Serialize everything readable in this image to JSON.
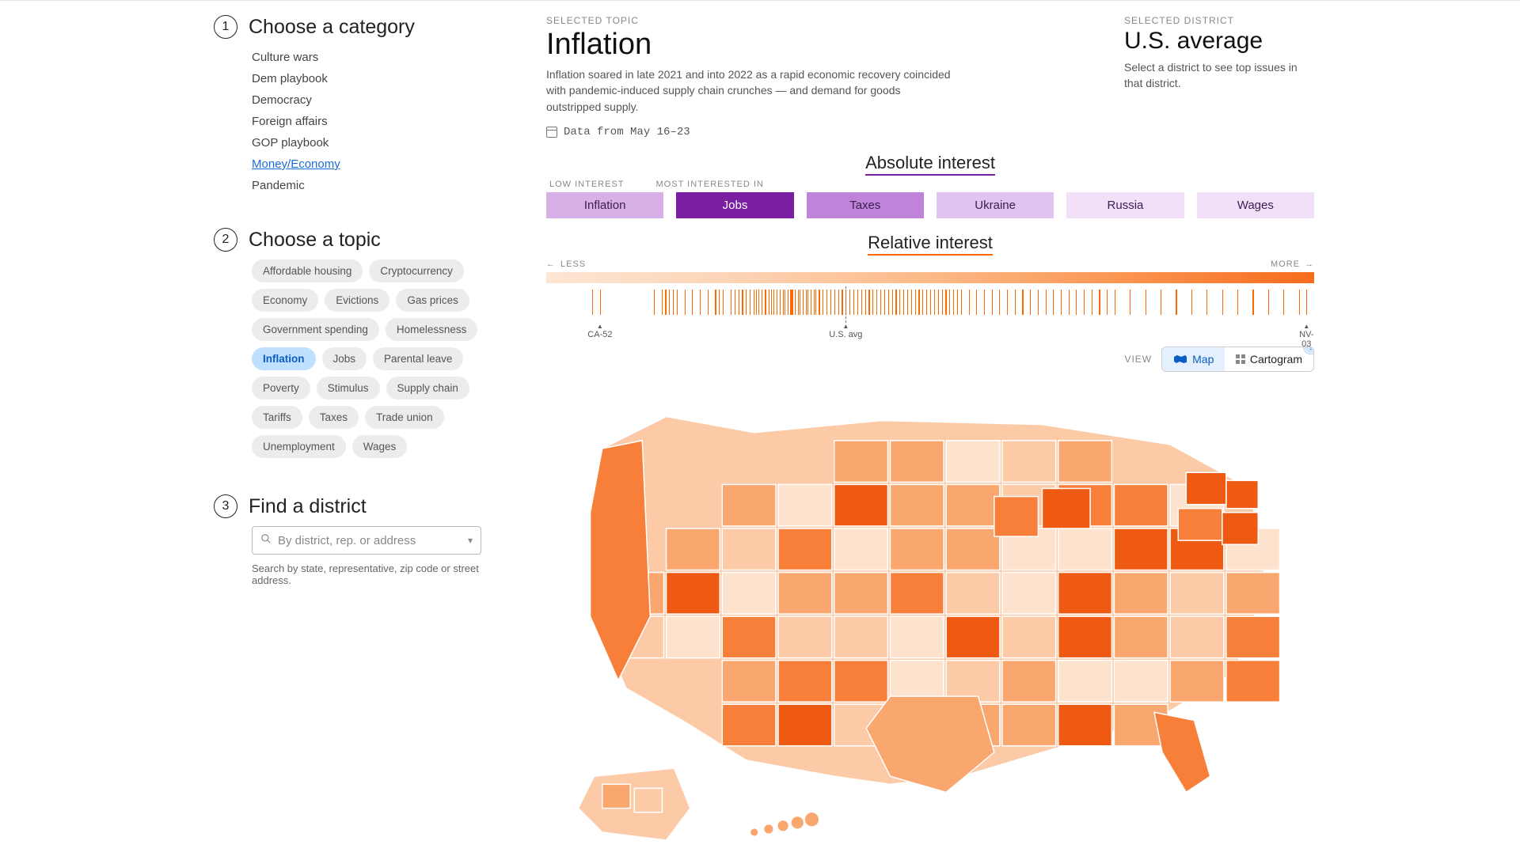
{
  "sidebar": {
    "step1": {
      "num": "1",
      "title": "Choose a category"
    },
    "categories": [
      {
        "label": "Culture wars",
        "selected": false
      },
      {
        "label": "Dem playbook",
        "selected": false
      },
      {
        "label": "Democracy",
        "selected": false
      },
      {
        "label": "Foreign affairs",
        "selected": false
      },
      {
        "label": "GOP playbook",
        "selected": false
      },
      {
        "label": "Money/Economy",
        "selected": true
      },
      {
        "label": "Pandemic",
        "selected": false
      }
    ],
    "step2": {
      "num": "2",
      "title": "Choose a topic"
    },
    "topics": [
      {
        "label": "Affordable housing"
      },
      {
        "label": "Cryptocurrency"
      },
      {
        "label": "Economy"
      },
      {
        "label": "Evictions"
      },
      {
        "label": "Gas prices"
      },
      {
        "label": "Government spending"
      },
      {
        "label": "Homelessness"
      },
      {
        "label": "Inflation",
        "selected": true
      },
      {
        "label": "Jobs"
      },
      {
        "label": "Parental leave"
      },
      {
        "label": "Poverty"
      },
      {
        "label": "Stimulus"
      },
      {
        "label": "Supply chain"
      },
      {
        "label": "Tariffs"
      },
      {
        "label": "Taxes"
      },
      {
        "label": "Trade union"
      },
      {
        "label": "Unemployment"
      },
      {
        "label": "Wages"
      }
    ],
    "step3": {
      "num": "3",
      "title": "Find a district"
    },
    "search": {
      "placeholder": "By district, rep. or address",
      "help": "Search by state, representative, zip code or street address."
    }
  },
  "main": {
    "topic": {
      "eyebrow": "SELECTED TOPIC",
      "title": "Inflation",
      "desc": "Inflation soared in late 2021 and into 2022 as a rapid economic recovery coincided with pandemic-induced supply chain crunches — and demand for goods outstripped supply.",
      "date": "Data from May 16–23"
    },
    "district": {
      "eyebrow": "SELECTED DISTRICT",
      "title": "U.S. average",
      "desc": "Select a district to see top issues in that district."
    },
    "absolute": {
      "title": "Absolute interest",
      "label_low": "LOW INTEREST",
      "label_high": "MOST INTERESTED IN",
      "bars": [
        {
          "label": "Inflation",
          "color": "#d7b0e8",
          "text": "#3a1e52"
        },
        {
          "label": "Jobs",
          "color": "#7b1fa2",
          "text": "#ffffff"
        },
        {
          "label": "Taxes",
          "color": "#c083da",
          "text": "#3a1e52"
        },
        {
          "label": "Ukraine",
          "color": "#e2c3ef",
          "text": "#3a1e52"
        },
        {
          "label": "Russia",
          "color": "#f2e0f9",
          "text": "#3a1e52"
        },
        {
          "label": "Wages",
          "color": "#f2e0f9",
          "text": "#3a1e52"
        }
      ]
    },
    "relative": {
      "title": "Relative interest",
      "less": "LESS",
      "more": "MORE",
      "gradient_colors": [
        "#fde6d4",
        "#fcd3b4",
        "#fbb987",
        "#fa9551",
        "#f76b1c"
      ],
      "avg_position_pct": 39,
      "markers": [
        {
          "label": "CA-52",
          "pct": 7
        },
        {
          "label": "U.S. avg",
          "pct": 39
        },
        {
          "label": "NV-03",
          "pct": 99
        }
      ],
      "ticks_pct": [
        6,
        7,
        14,
        15,
        15.5,
        16,
        16.5,
        17,
        18,
        19,
        20,
        21,
        22,
        22.5,
        23,
        24,
        24.5,
        25,
        25.5,
        26,
        26.5,
        27,
        27.3,
        27.6,
        28,
        28.5,
        29,
        29.3,
        29.6,
        30,
        30.4,
        30.8,
        31,
        31.4,
        31.8,
        32,
        32.4,
        32.8,
        33,
        33.4,
        33.8,
        34,
        34.4,
        34.8,
        35,
        35.5,
        36,
        36.5,
        37,
        37.5,
        38,
        38.5,
        39,
        39.5,
        40,
        40.5,
        41,
        41.5,
        42,
        42.5,
        43,
        43.5,
        44,
        44.5,
        45,
        45.5,
        46,
        46.5,
        47,
        47.5,
        48,
        48.5,
        49,
        49.5,
        50,
        50.5,
        51,
        51.5,
        52,
        52.5,
        53,
        53.5,
        54,
        55,
        56,
        57,
        58,
        59,
        60,
        61,
        62,
        63,
        64,
        65,
        66,
        67,
        68,
        69,
        70,
        71,
        72,
        73,
        74,
        76,
        78,
        80,
        82,
        84,
        86,
        88,
        90,
        92,
        94,
        96,
        98,
        99
      ]
    },
    "view": {
      "label": "VIEW",
      "map": "Map",
      "cartogram": "Cartogram",
      "help": "?"
    },
    "map": {
      "outline_color": "#ffffff",
      "palette": [
        "#fde2cd",
        "#fccaa6",
        "#faa66f",
        "#f77f3a",
        "#ee5a12"
      ]
    }
  }
}
